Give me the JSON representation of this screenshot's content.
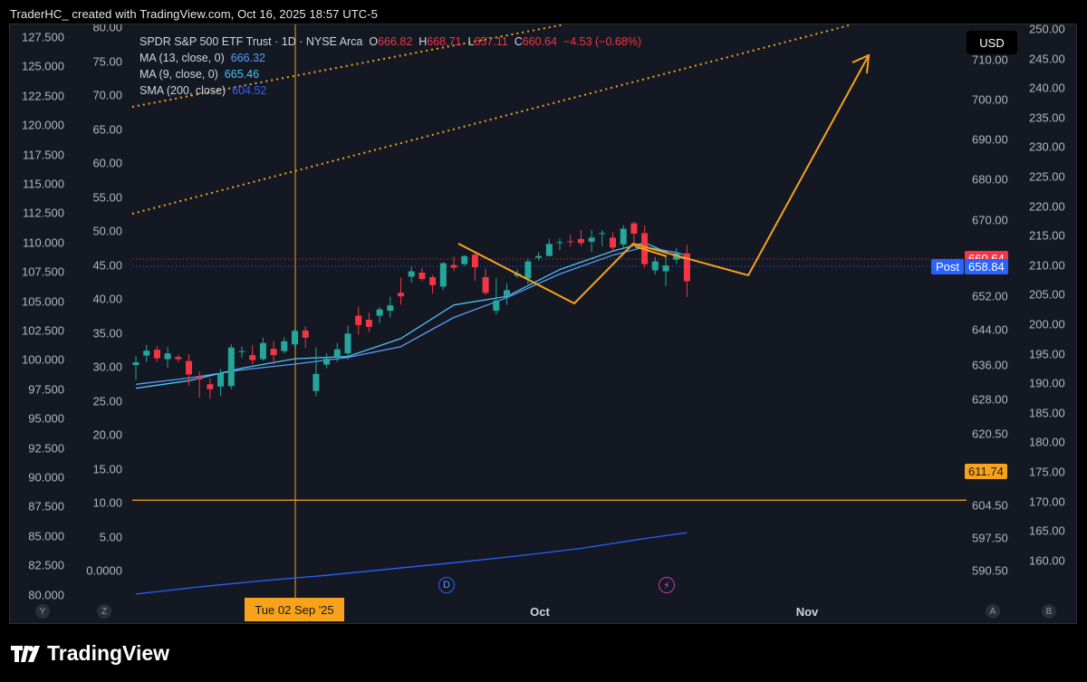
{
  "header": {
    "text": "TraderHC_ created with TradingView.com, Oct 16, 2025 18:57 UTC-5"
  },
  "legend": {
    "symbol": "SPDR S&P 500 ETF Trust · 1D · NYSE Arca",
    "o_label": "O",
    "o_value": "666.82",
    "h_label": "H",
    "h_value": "668.71",
    "l_label": "L",
    "l_value": "657.11",
    "c_label": "C",
    "c_value": "660.64",
    "change": "−4.53 (−0.68%)",
    "ma13_label": "MA (13, close, 0)",
    "ma13_value": "666.32",
    "ma9_label": "MA (9, close, 0)",
    "ma9_value": "665.46",
    "sma_label": "SMA (200, close)",
    "sma_value": "604.52"
  },
  "currency": "USD",
  "price_tags": {
    "last": "660.64",
    "post_label": "Post",
    "post_value": "658.84",
    "hline_value": "611.74"
  },
  "axes": {
    "left_outer": [
      "127.500",
      "125.000",
      "122.500",
      "120.000",
      "117.500",
      "115.000",
      "112.500",
      "110.000",
      "107.500",
      "105.000",
      "102.500",
      "100.000",
      "97.500",
      "95.000",
      "92.500",
      "90.000",
      "87.500",
      "85.000",
      "82.500",
      "80.000"
    ],
    "left_inner": [
      "80.00",
      "75.00",
      "70.00",
      "65.00",
      "60.00",
      "55.00",
      "50.00",
      "45.00",
      "40.00",
      "35.00",
      "30.00",
      "25.00",
      "20.00",
      "15.00",
      "10.00",
      "5.00",
      "0.0000"
    ],
    "right_inner": [
      "710.00",
      "700.00",
      "690.00",
      "680.00",
      "670.00",
      "652.00",
      "644.00",
      "636.00",
      "628.00",
      "620.50",
      "604.50",
      "597.50",
      "590.50"
    ],
    "right_outer": [
      "250.00",
      "245.00",
      "240.00",
      "235.00",
      "230.00",
      "225.00",
      "220.00",
      "215.00",
      "210.00",
      "205.00",
      "200.00",
      "195.00",
      "190.00",
      "185.00",
      "180.00",
      "175.00",
      "170.00",
      "165.00",
      "160.00"
    ],
    "x_labels": [
      "Oct",
      "Nov"
    ],
    "crosshair_date": "Tue 02 Sep '25",
    "corner_left": [
      "Y",
      "Z"
    ],
    "corner_right": [
      "A",
      "B"
    ]
  },
  "events": {
    "dividend": "D",
    "earnings": "⚡"
  },
  "colors": {
    "up": "#26a69a",
    "down": "#f23645",
    "ma13": "#5b9cf6",
    "ma9": "#4fc3f7",
    "sma": "#2962ff",
    "drawing": "#f7a21b"
  },
  "brand": {
    "name": "TradingView"
  },
  "chart_data": {
    "type": "candlestick",
    "title": "SPDR S&P 500 ETF Trust · 1D · NYSE Arca",
    "ylabel": "",
    "ylim": [
      586,
      718
    ],
    "candles": [
      [
        641.9,
        643.9,
        638.6,
        642.5
      ],
      [
        644.0,
        646.4,
        642.6,
        645.1
      ],
      [
        645.3,
        646.1,
        642.6,
        643.4
      ],
      [
        643.2,
        645.9,
        641.3,
        644.5
      ],
      [
        643.7,
        644.2,
        642.6,
        643.2
      ],
      [
        642.8,
        644.3,
        637.3,
        639.8
      ],
      [
        639.3,
        640.5,
        634.6,
        638.7
      ],
      [
        637.6,
        639.0,
        634.4,
        636.5
      ],
      [
        637.1,
        641.0,
        635.0,
        640.1
      ],
      [
        637.2,
        646.5,
        636.5,
        645.8
      ],
      [
        644.9,
        646.0,
        643.5,
        645.0
      ],
      [
        644.1,
        646.3,
        642.0,
        643.0
      ],
      [
        643.2,
        648.0,
        642.9,
        646.8
      ],
      [
        645.5,
        647.2,
        642.0,
        644.1
      ],
      [
        645.0,
        648.1,
        644.5,
        647.2
      ],
      [
        646.5,
        650.0,
        645.8,
        649.5
      ],
      [
        649.6,
        650.5,
        645.7,
        648.0
      ],
      [
        636.1,
        645.8,
        634.9,
        639.9
      ],
      [
        642.0,
        644.5,
        641.2,
        643.3
      ],
      [
        643.6,
        646.8,
        642.6,
        645.4
      ],
      [
        644.5,
        650.7,
        643.1,
        648.9
      ],
      [
        652.9,
        654.9,
        648.7,
        650.8
      ],
      [
        652.0,
        653.6,
        649.2,
        650.4
      ],
      [
        652.9,
        654.8,
        651.2,
        654.3
      ],
      [
        654.0,
        657.1,
        652.5,
        655.2
      ],
      [
        658.0,
        661.4,
        655.4,
        657.2
      ],
      [
        661.6,
        663.8,
        660.3,
        662.8
      ],
      [
        662.5,
        663.5,
        660.6,
        661.1
      ],
      [
        661.5,
        662.0,
        657.8,
        659.7
      ],
      [
        659.4,
        664.8,
        658.6,
        664.6
      ],
      [
        664.2,
        666.1,
        662.8,
        663.6
      ],
      [
        664.4,
        666.4,
        664.0,
        666.2
      ],
      [
        666.5,
        666.8,
        660.7,
        663.7
      ],
      [
        661.5,
        663.4,
        657.5,
        658.0
      ],
      [
        654.0,
        661.3,
        653.1,
        656.3
      ],
      [
        657.3,
        660.1,
        655.3,
        658.6
      ],
      [
        661.8,
        663.2,
        661.3,
        662.3
      ],
      [
        661.2,
        665.7,
        659.9,
        665.0
      ],
      [
        665.8,
        667.1,
        665.2,
        666.2
      ],
      [
        666.2,
        670.0,
        666.2,
        668.9
      ],
      [
        669.1,
        670.1,
        667.5,
        669.3
      ],
      [
        669.5,
        671.0,
        668.3,
        669.3
      ],
      [
        670.0,
        672.0,
        668.4,
        669.1
      ],
      [
        669.4,
        672.0,
        667.1,
        670.3
      ],
      [
        671.2,
        672.0,
        668.4,
        671.3
      ],
      [
        670.3,
        671.5,
        667.3,
        668.1
      ],
      [
        668.8,
        673.1,
        667.9,
        672.3
      ],
      [
        673.5,
        673.9,
        668.6,
        671.2
      ],
      [
        671.3,
        673.0,
        663.6,
        664.4
      ],
      [
        663.0,
        666.0,
        662.1,
        665.0
      ],
      [
        662.8,
        666.3,
        659.5,
        664.1
      ],
      [
        665.4,
        668.0,
        664.6,
        666.8
      ],
      [
        666.8,
        668.7,
        657.1,
        660.6
      ]
    ],
    "series": [
      {
        "name": "MA (13, close, 0)",
        "values": [
          [
            0,
            637.6
          ],
          [
            5,
            639.0
          ],
          [
            10,
            640.8
          ],
          [
            15,
            642.1
          ],
          [
            20,
            643.6
          ],
          [
            25,
            646.0
          ],
          [
            30,
            652.5
          ],
          [
            35,
            656.9
          ],
          [
            40,
            662.2
          ],
          [
            45,
            666.4
          ],
          [
            48,
            668.2
          ],
          [
            51,
            667.0
          ],
          [
            52,
            666.3
          ]
        ]
      },
      {
        "name": "MA (9, close, 0)",
        "values": [
          [
            0,
            636.7
          ],
          [
            5,
            638.4
          ],
          [
            10,
            641.2
          ],
          [
            15,
            643.3
          ],
          [
            20,
            643.8
          ],
          [
            25,
            647.8
          ],
          [
            30,
            655.3
          ],
          [
            35,
            657.2
          ],
          [
            40,
            663.2
          ],
          [
            45,
            667.3
          ],
          [
            48,
            669.2
          ],
          [
            51,
            666.1
          ],
          [
            52,
            665.5
          ]
        ]
      },
      {
        "name": "SMA (200, close)",
        "values": [
          [
            0,
            590.8
          ],
          [
            6,
            592.4
          ],
          [
            12,
            593.8
          ],
          [
            18,
            595.0
          ],
          [
            24,
            596.4
          ],
          [
            30,
            597.8
          ],
          [
            36,
            599.3
          ],
          [
            42,
            601.0
          ],
          [
            48,
            603.2
          ],
          [
            52,
            604.5
          ]
        ]
      }
    ],
    "horizontal_line": 611.74,
    "last_price": 660.64,
    "post_price": 658.84
  }
}
